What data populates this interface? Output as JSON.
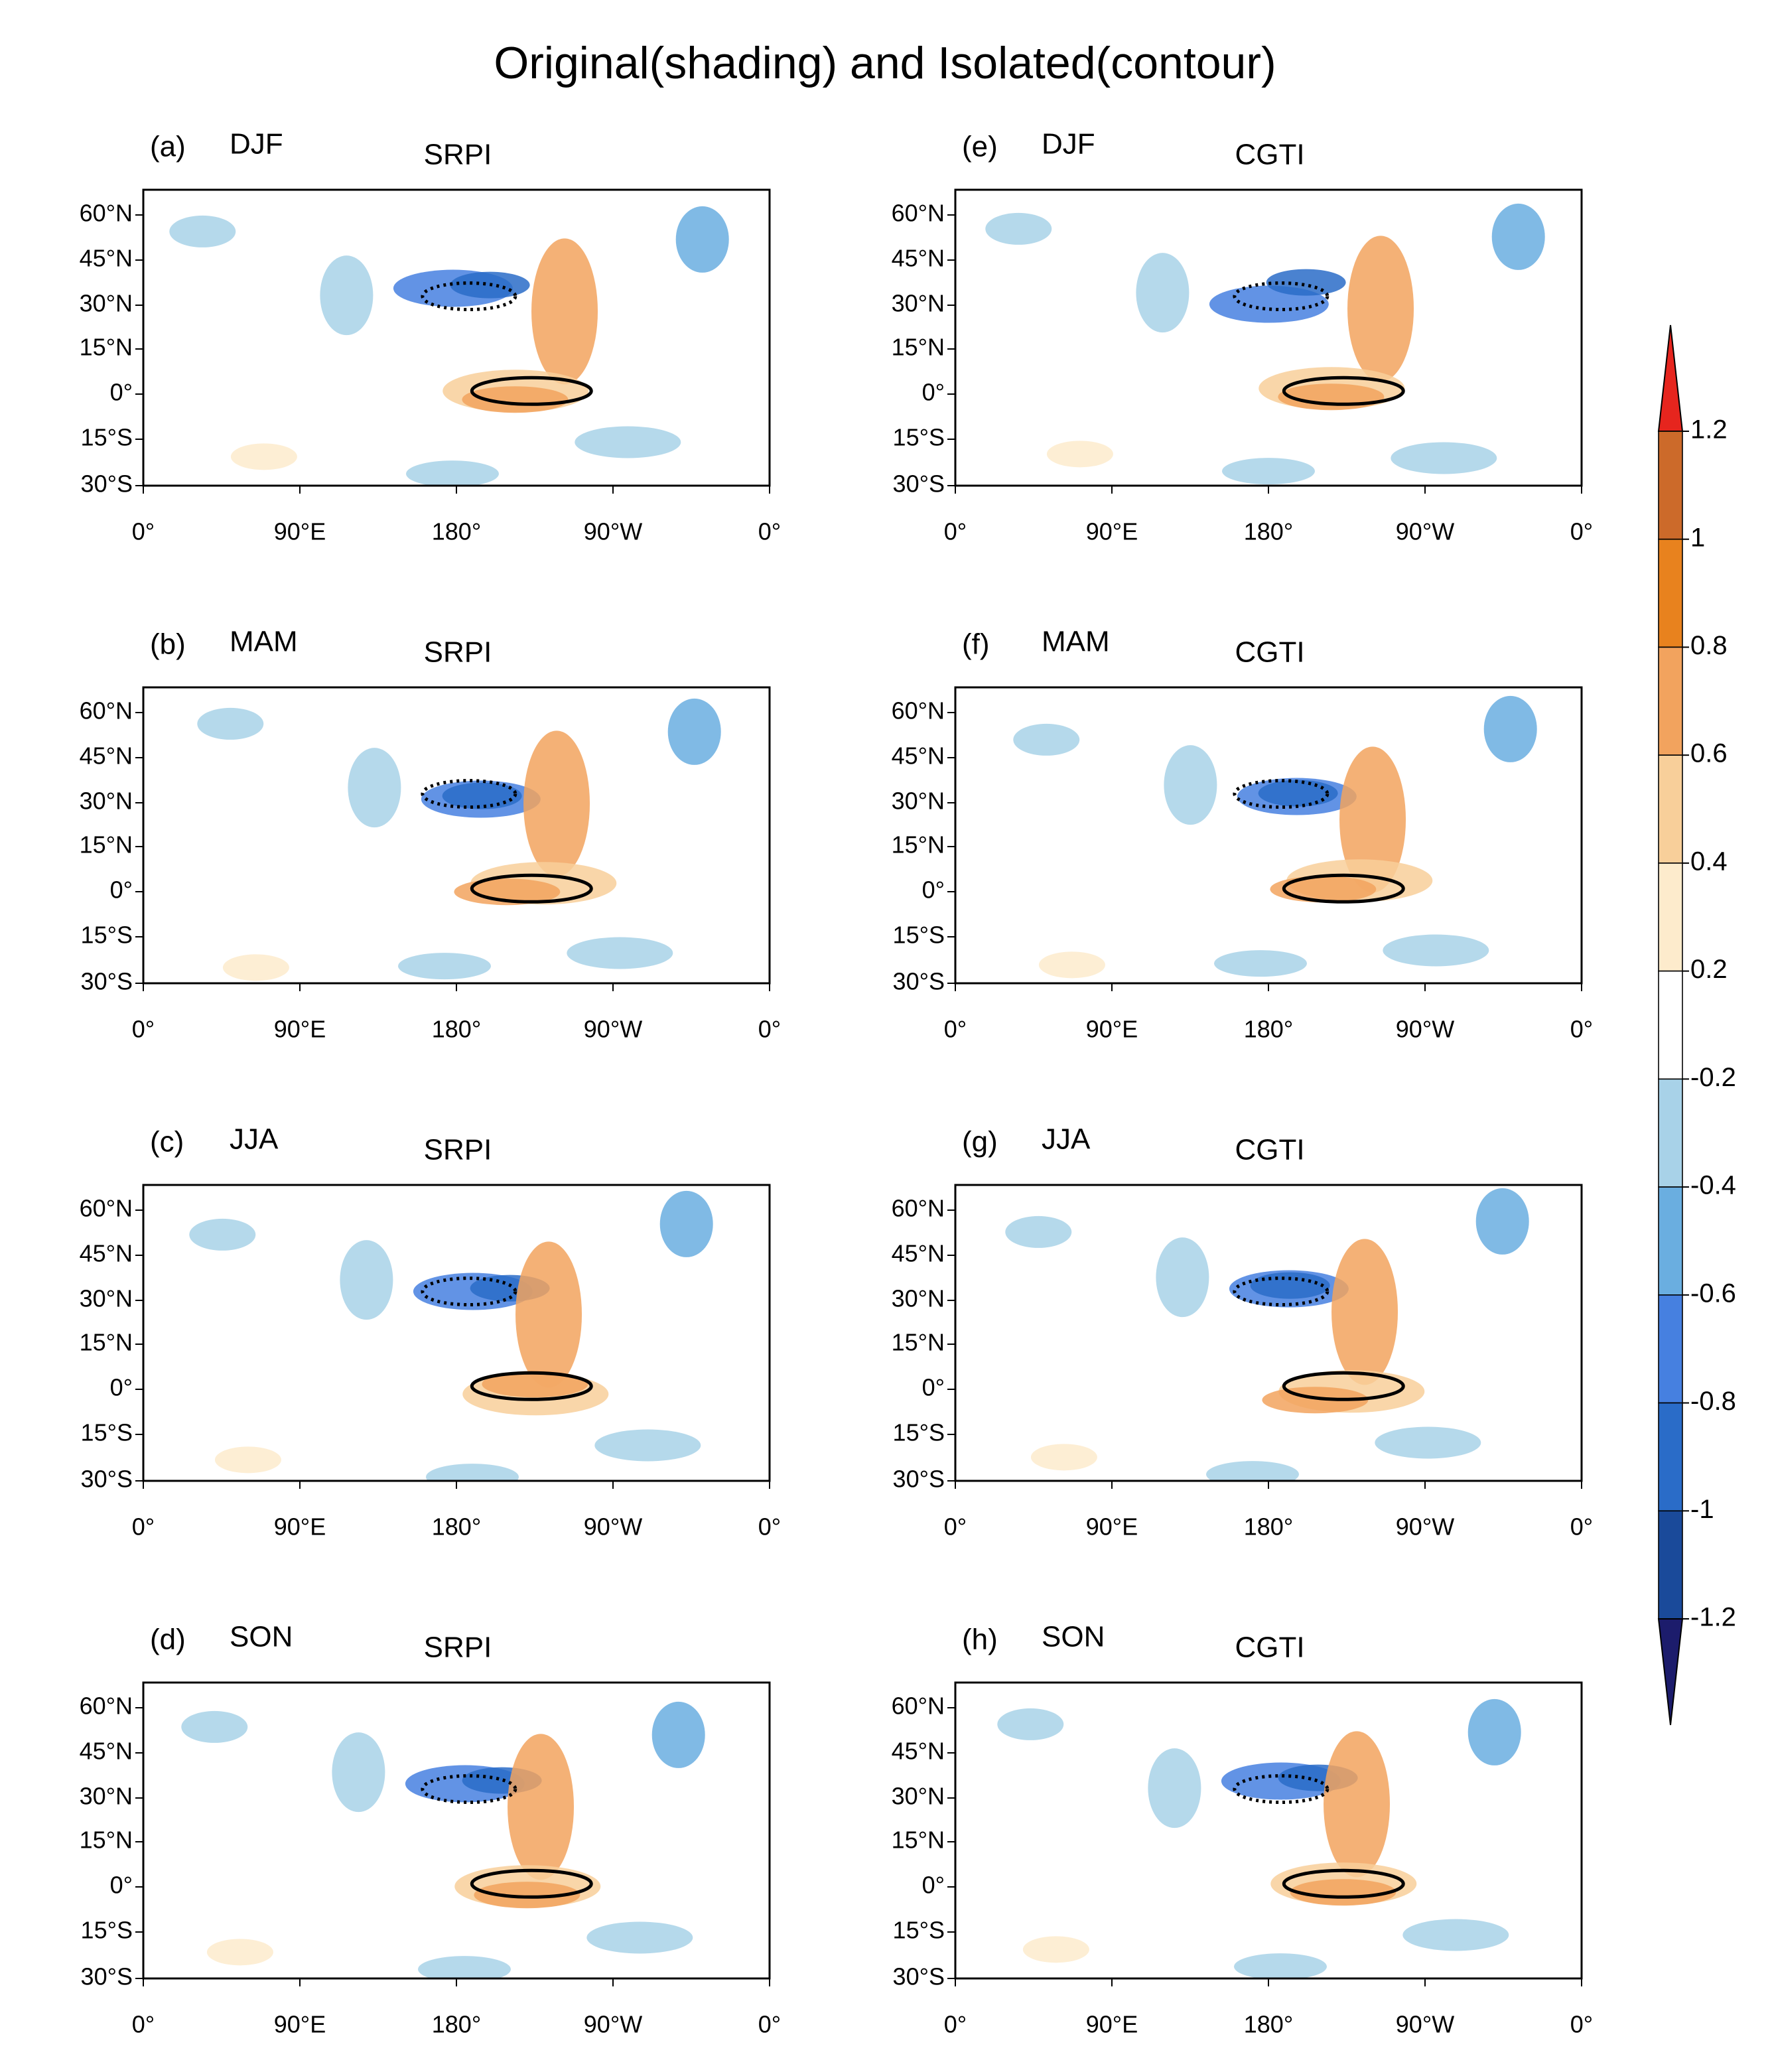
{
  "title": "Original(shading) and Isolated(contour)",
  "panels": [
    {
      "label": "(a)",
      "season": "DJF",
      "index": "SRPI"
    },
    {
      "label": "(b)",
      "season": "MAM",
      "index": "SRPI"
    },
    {
      "label": "(c)",
      "season": "JJA",
      "index": "SRPI"
    },
    {
      "label": "(d)",
      "season": "SON",
      "index": "SRPI"
    },
    {
      "label": "(e)",
      "season": "DJF",
      "index": "CGTI"
    },
    {
      "label": "(f)",
      "season": "MAM",
      "index": "CGTI"
    },
    {
      "label": "(g)",
      "season": "JJA",
      "index": "CGTI"
    },
    {
      "label": "(h)",
      "season": "SON",
      "index": "CGTI"
    }
  ],
  "lat_labels": [
    "60°N",
    "45°N",
    "30°N",
    "15°N",
    "0°",
    "15°S",
    "30°S"
  ],
  "lon_labels": [
    "0°",
    "90°E",
    "180°",
    "90°W",
    "0°"
  ],
  "colorbar": {
    "levels": [
      1.2,
      1,
      0.8,
      0.6,
      0.4,
      0.2,
      -0.2,
      -0.4,
      -0.6,
      -0.8,
      -1,
      -1.2
    ],
    "colors": [
      "#e6251e",
      "#cc6a2a",
      "#e8821e",
      "#f2a35e",
      "#f8cf9a",
      "#fdebcc",
      "#ffffff",
      "#a8d2e8",
      "#6aaee0",
      "#4680e0",
      "#2a6cc8",
      "#1a4a9a",
      "#1c1c6c"
    ]
  }
}
